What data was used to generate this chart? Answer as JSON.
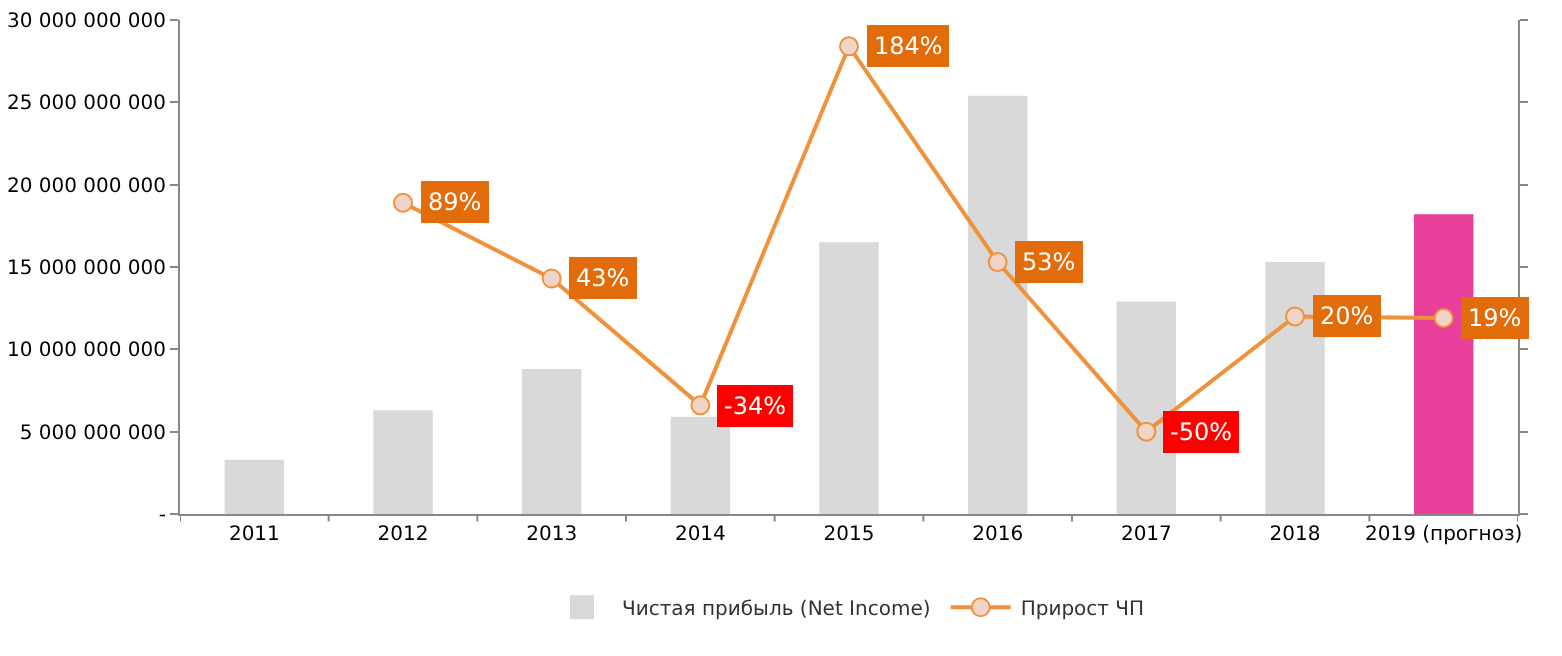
{
  "chart_data": {
    "type": "bar",
    "categories": [
      "2011",
      "2012",
      "2013",
      "2014",
      "2015",
      "2016",
      "2017",
      "2018",
      "2019 (прогноз)"
    ],
    "series": [
      {
        "name": "Чистая прибыль (Net Income)",
        "colors": [
          "#d9d9d9",
          "#d9d9d9",
          "#d9d9d9",
          "#d9d9d9",
          "#d9d9d9",
          "#d9d9d9",
          "#d9d9d9",
          "#d9d9d9",
          "#e8409a"
        ],
        "values": [
          3300000000,
          6300000000,
          8800000000,
          5900000000,
          16500000000,
          25400000000,
          12900000000,
          15300000000,
          18200000000
        ]
      },
      {
        "name": "Прирост ЧП",
        "type": "line",
        "axis": "y2",
        "color": "#f0913c",
        "marker": "circle",
        "values": [
          null,
          89,
          43,
          -34,
          184,
          53,
          -50,
          20,
          19
        ],
        "value_labels": [
          null,
          "89%",
          "43%",
          "-34%",
          "184%",
          "53%",
          "-50%",
          "20%",
          "19%"
        ]
      }
    ],
    "ylim": [
      0,
      30000000000
    ],
    "yticks": [
      {
        "value": 0,
        "label": "-"
      },
      {
        "value": 5000000000,
        "label": "5 000 000 000"
      },
      {
        "value": 10000000000,
        "label": "10 000 000 000"
      },
      {
        "value": 15000000000,
        "label": "15 000 000 000"
      },
      {
        "value": 20000000000,
        "label": "20 000 000 000"
      },
      {
        "value": 25000000000,
        "label": "25 000 000 000"
      },
      {
        "value": 30000000000,
        "label": "30 000 000 000"
      }
    ],
    "y2lim": [
      -100,
      200
    ],
    "y2ticks": [
      {
        "value": -100,
        "label": null
      },
      {
        "value": -50,
        "label": null
      },
      {
        "value": 0,
        "label": null
      },
      {
        "value": 50,
        "label": null
      },
      {
        "value": 100,
        "label": null
      },
      {
        "value": 150,
        "label": null
      },
      {
        "value": 200,
        "label": null
      }
    ],
    "grid": false,
    "legend": "bottom"
  }
}
